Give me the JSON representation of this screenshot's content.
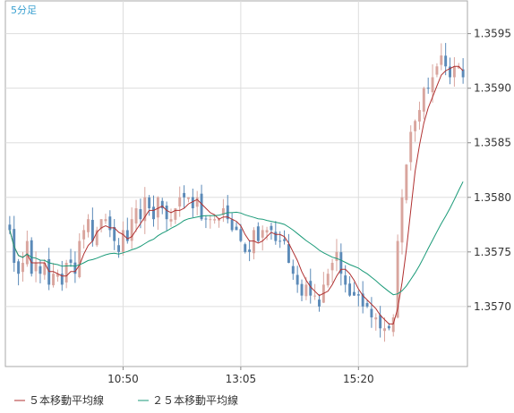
{
  "chart_data": {
    "type": "candlestick",
    "period_label": "5分足",
    "ylim": [
      1.35645,
      1.3598
    ],
    "y_ticks": [
      {
        "value": 1.357,
        "label": "1.3570"
      },
      {
        "value": 1.3575,
        "label": "1.3575"
      },
      {
        "value": 1.358,
        "label": "1.3580"
      },
      {
        "value": 1.3585,
        "label": "1.3585"
      },
      {
        "value": 1.359,
        "label": "1.3590"
      },
      {
        "value": 1.3595,
        "label": "1.3595"
      }
    ],
    "x_ticks": [
      {
        "index": 26,
        "label": "10:50"
      },
      {
        "index": 53,
        "label": "13:05"
      },
      {
        "index": 80,
        "label": "15:20"
      }
    ],
    "grid": true,
    "legend": {
      "placement": "bottom-left",
      "items": [
        {
          "name": "５本移動平均線",
          "color": "#b03030"
        },
        {
          "name": "２５本移動平均線",
          "color": "#1a9a78"
        }
      ]
    },
    "up_color": "#d9a59e",
    "down_color": "#5b8ab8",
    "closes": [
      1.3577,
      1.3574,
      1.3573,
      1.3574,
      1.3576,
      1.3573,
      1.3574,
      1.3573,
      1.3574,
      1.3572,
      1.3573,
      1.3573,
      1.3572,
      1.3574,
      1.3574,
      1.3573,
      1.3576,
      1.3577,
      1.3578,
      1.3576,
      1.3577,
      1.3578,
      1.3578,
      1.3577,
      1.3576,
      1.3575,
      1.3577,
      1.3576,
      1.3578,
      1.3579,
      1.3578,
      1.358,
      1.3579,
      1.3578,
      1.358,
      1.3579,
      1.3578,
      1.3578,
      1.3579,
      1.358,
      1.358,
      1.358,
      1.3579,
      1.358,
      1.3578,
      1.3578,
      1.3578,
      1.3578,
      1.3578,
      1.3579,
      1.3578,
      1.3577,
      1.3577,
      1.3576,
      1.3575,
      1.3575,
      1.3577,
      1.3576,
      1.3577,
      1.3577,
      1.3577,
      1.3576,
      1.3576,
      1.3576,
      1.3574,
      1.3573,
      1.3572,
      1.3571,
      1.3572,
      1.3571,
      1.3571,
      1.357,
      1.3572,
      1.3573,
      1.3574,
      1.3575,
      1.3573,
      1.3572,
      1.3571,
      1.3571,
      1.3571,
      1.357,
      1.357,
      1.3569,
      1.3569,
      1.3568,
      1.3568,
      1.3568,
      1.3569,
      1.3576,
      1.358,
      1.3583,
      1.3586,
      1.3587,
      1.3588,
      1.359,
      1.359,
      1.3591,
      1.3592,
      1.3593,
      1.3592,
      1.3591,
      1.3592,
      1.3592,
      1.3591
    ]
  }
}
